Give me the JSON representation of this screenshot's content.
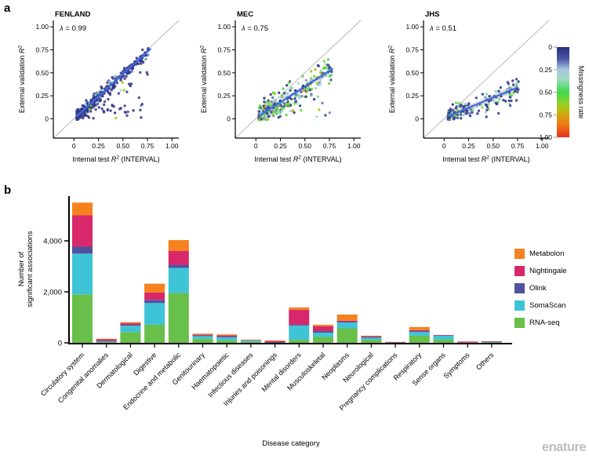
{
  "figure": {
    "panel_a_label": "a",
    "panel_b_label": "b",
    "watermark": "enature"
  },
  "colors": {
    "fit_line": "#3d6be3",
    "identity_line": "#b8b8b8",
    "axis": "#000000",
    "watermark": "#bdbdbd"
  },
  "chart_data": [
    {
      "type": "scatter",
      "id": "panel-a",
      "xlabel": {
        "pre": "Internal test ",
        "r": "R",
        "sup": "2",
        "post": " (INTERVAL)"
      },
      "ylabel": {
        "pre": "External validation ",
        "r": "R",
        "sup": "2",
        "post": ""
      },
      "tick_labels": [
        "0",
        "0.25",
        "0.50",
        "0.75",
        "1.00"
      ],
      "tick_values": [
        0,
        0.25,
        0.5,
        0.75,
        1
      ],
      "xlim": [
        -0.21,
        1.07
      ],
      "ylim": [
        -0.21,
        1.07
      ],
      "grid": false,
      "identity_line": true,
      "colorbar": {
        "title": "Missingness rate",
        "tick_labels": [
          "0",
          "0.25",
          "0.50",
          "0.75",
          "1.00"
        ],
        "tick_values": [
          0,
          0.25,
          0.5,
          0.75,
          1
        ],
        "gradient": [
          {
            "t": 0,
            "c": "#2b2d80"
          },
          {
            "t": 0.13,
            "c": "#4a55a2"
          },
          {
            "t": 0.25,
            "c": "#a9c6e2"
          },
          {
            "t": 0.35,
            "c": "#9fdcc0"
          },
          {
            "t": 0.5,
            "c": "#3fd94f"
          },
          {
            "t": 0.62,
            "c": "#8fd426"
          },
          {
            "t": 0.72,
            "c": "#c8b50f"
          },
          {
            "t": 0.85,
            "c": "#ef7d15"
          },
          {
            "t": 1,
            "c": "#e8311a"
          }
        ]
      },
      "panels": [
        {
          "title": "FENLAND",
          "lambda_label": "λ = 0.99",
          "lambda": 0.99,
          "n_points": 430,
          "fit": {
            "slope": 0.97,
            "intercept": 0.0,
            "x_range": [
              0.03,
              0.78
            ]
          },
          "sim": {
            "seed": 11,
            "noise_sd": 0.045,
            "below_p": 0.28,
            "x_pow": 2.2,
            "x_min": 0.03,
            "x_max": 0.76,
            "band_w": [
              1.2,
              1.8
            ],
            "missingness_mix": [
              {
                "p": 0.9,
                "lo": 0,
                "hi": 0.08
              },
              {
                "p": 0.06,
                "lo": 0.15,
                "hi": 0.35
              },
              {
                "p": 0.04,
                "lo": 0.4,
                "hi": 0.7
              }
            ]
          }
        },
        {
          "title": "MEC",
          "lambda_label": "λ = 0.75",
          "lambda": 0.75,
          "n_points": 310,
          "fit": {
            "slope": 0.68,
            "intercept": 0.01,
            "x_range": [
              0.03,
              0.78
            ]
          },
          "sim": {
            "seed": 23,
            "noise_sd": 0.11,
            "below_p": 0.15,
            "x_pow": 1.6,
            "x_min": 0.03,
            "x_max": 0.78,
            "band_w": [
              1.8,
              3.2
            ],
            "missingness_mix": [
              {
                "p": 0.3,
                "lo": 0,
                "hi": 0.1
              },
              {
                "p": 0.3,
                "lo": 0.15,
                "hi": 0.35
              },
              {
                "p": 0.28,
                "lo": 0.4,
                "hi": 0.62
              },
              {
                "p": 0.12,
                "lo": 0.55,
                "hi": 0.78
              }
            ]
          }
        },
        {
          "title": "JHS",
          "lambda_label": "λ = 0.51",
          "lambda": 0.51,
          "n_points": 165,
          "fit": {
            "slope": 0.44,
            "intercept": 0.01,
            "x_range": [
              0.04,
              0.75
            ]
          },
          "sim": {
            "seed": 37,
            "noise_sd": 0.09,
            "below_p": 0.2,
            "x_pow": 1.8,
            "x_min": 0.04,
            "x_max": 0.76,
            "band_w": [
              2.5,
              5
            ],
            "missingness_mix": [
              {
                "p": 0.62,
                "lo": 0,
                "hi": 0.08
              },
              {
                "p": 0.18,
                "lo": 0.2,
                "hi": 0.4
              },
              {
                "p": 0.2,
                "lo": 0.4,
                "hi": 0.62
              }
            ]
          }
        }
      ]
    },
    {
      "type": "bar",
      "stacked": true,
      "id": "panel-b",
      "xlabel": "Disease category",
      "ylabel_lines": [
        "Number of",
        "significant associations"
      ],
      "yticks": [
        {
          "v": 0,
          "label": "0"
        },
        {
          "v": 2000,
          "label": "2,000"
        },
        {
          "v": 4000,
          "label": "4,000"
        }
      ],
      "ylim": [
        0,
        5600
      ],
      "categories": [
        "Circulatory system",
        "Congenital anomalies",
        "Dermatological",
        "Digestive",
        "Endocrine and metabolic",
        "Genitourinary",
        "Haematopoietic",
        "Infectious diseases",
        "Injuries and poisonings",
        "Mental disorders",
        "Musculoskeletal",
        "Neoplasms",
        "Neurological",
        "Pregnancy complications",
        "Respiratory",
        "Sense organs",
        "Symptoms",
        "Others"
      ],
      "series": [
        {
          "name": "RNA-seq",
          "color": "#68bf4a",
          "values": [
            1900,
            30,
            420,
            710,
            1950,
            160,
            100,
            40,
            10,
            120,
            230,
            570,
            120,
            20,
            280,
            135,
            10,
            15
          ]
        },
        {
          "name": "SomaScan",
          "color": "#3fc3d6",
          "values": [
            1600,
            40,
            250,
            850,
            990,
            110,
            130,
            70,
            15,
            560,
            170,
            230,
            100,
            10,
            150,
            165,
            0,
            40
          ]
        },
        {
          "name": "Olink",
          "color": "#5051a0",
          "values": [
            270,
            10,
            40,
            125,
            120,
            20,
            15,
            0,
            5,
            30,
            60,
            30,
            10,
            0,
            30,
            0,
            0,
            0
          ]
        },
        {
          "name": "Nightingale",
          "color": "#d9276b",
          "values": [
            1230,
            60,
            60,
            290,
            540,
            30,
            45,
            10,
            55,
            590,
            190,
            40,
            40,
            5,
            35,
            10,
            40,
            10
          ]
        },
        {
          "name": "Metabolon",
          "color": "#f5821f",
          "values": [
            500,
            20,
            40,
            345,
            430,
            40,
            40,
            5,
            5,
            90,
            60,
            240,
            10,
            0,
            125,
            0,
            0,
            0
          ]
        }
      ],
      "legend_position": "right",
      "legend_order": [
        "Metabolon",
        "Nightingale",
        "Olink",
        "SomaScan",
        "RNA-seq"
      ]
    }
  ]
}
